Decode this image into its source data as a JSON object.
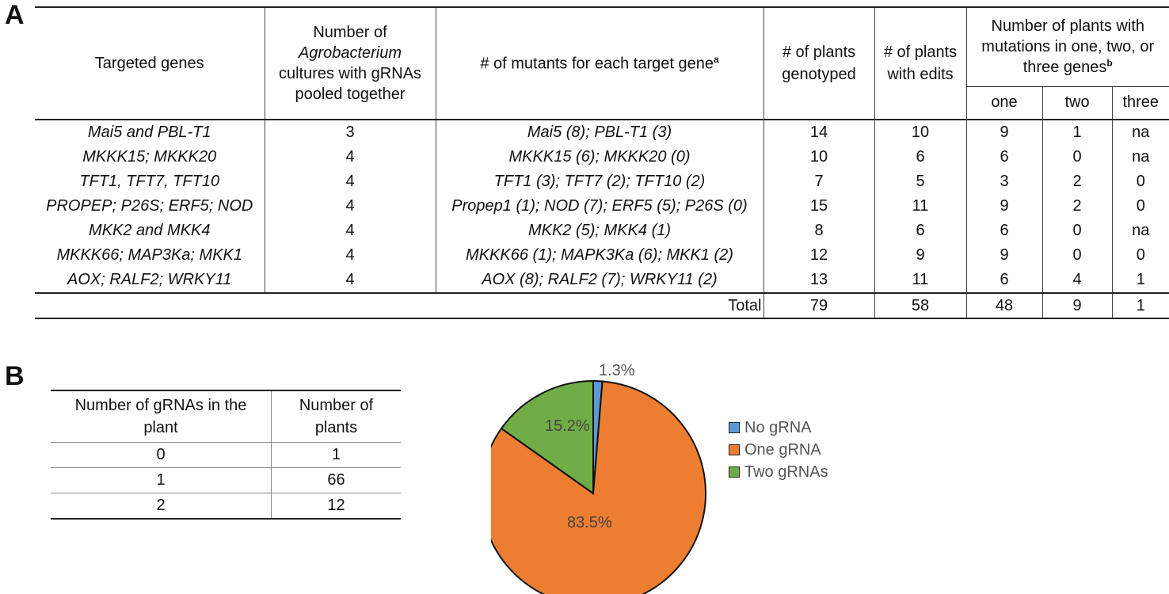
{
  "panels": {
    "a": "A",
    "b": "B"
  },
  "table_a": {
    "headers": {
      "targeted_genes": "Targeted genes",
      "cultures_line1": "Number of",
      "cultures_line2": "Agrobacterium",
      "cultures_line3": "cultures with gRNAs",
      "cultures_line4": "pooled together",
      "mutants": "# of mutants for each target gene",
      "mutants_sup": "a",
      "genotyped_line1": "# of plants",
      "genotyped_line2": "genotyped",
      "edits_line1": "# of plants",
      "edits_line2": "with edits",
      "multi_line1": "Number of plants with",
      "multi_line2": "mutations in one, two, or",
      "multi_line3": "three genes",
      "multi_sup": "b",
      "one": "one",
      "two": "two",
      "three": "three"
    },
    "rows": [
      {
        "genes": "Mai5 and PBL-T1",
        "cultures": "3",
        "mutants": "Mai5 (8); PBL-T1 (3)",
        "genotyped": "14",
        "edits": "10",
        "one": "9",
        "two": "1",
        "three": "na"
      },
      {
        "genes": "MKKK15; MKKK20",
        "cultures": "4",
        "mutants": "MKKK15 (6); MKKK20 (0)",
        "genotyped": "10",
        "edits": "6",
        "one": "6",
        "two": "0",
        "three": "na"
      },
      {
        "genes": "TFT1, TFT7, TFT10",
        "cultures": "4",
        "mutants": "TFT1 (3); TFT7 (2); TFT10 (2)",
        "genotyped": "7",
        "edits": "5",
        "one": "3",
        "two": "2",
        "three": "0"
      },
      {
        "genes": "PROPEP; P26S; ERF5; NOD",
        "cultures": "4",
        "mutants": "Propep1 (1); NOD (7); ERF5 (5); P26S (0)",
        "genotyped": "15",
        "edits": "11",
        "one": "9",
        "two": "2",
        "three": "0"
      },
      {
        "genes": "MKK2 and MKK4",
        "cultures": "4",
        "mutants": "MKK2 (5); MKK4 (1)",
        "genotyped": "8",
        "edits": "6",
        "one": "6",
        "two": "0",
        "three": "na"
      },
      {
        "genes": "MKKK66; MAP3Ka; MKK1",
        "cultures": "4",
        "mutants": "MKKK66 (1); MAPK3Ka (6); MKK1 (2)",
        "genotyped": "12",
        "edits": "9",
        "one": "9",
        "two": "0",
        "three": "0"
      },
      {
        "genes": "AOX; RALF2; WRKY11",
        "cultures": "4",
        "mutants": "AOX (8); RALF2 (7); WRKY11 (2)",
        "genotyped": "13",
        "edits": "11",
        "one": "6",
        "two": "4",
        "three": "1"
      }
    ],
    "total": {
      "label": "Total",
      "genotyped": "79",
      "edits": "58",
      "one": "48",
      "two": "9",
      "three": "1"
    }
  },
  "table_b": {
    "headers": {
      "grnas_line1": "Number of gRNAs in the",
      "grnas_line2": "plant",
      "plants_line1": "Number of",
      "plants_line2": "plants"
    },
    "rows": [
      {
        "grnas": "0",
        "plants": "1"
      },
      {
        "grnas": "1",
        "plants": "66"
      },
      {
        "grnas": "2",
        "plants": "12"
      }
    ]
  },
  "chart_data": {
    "type": "pie",
    "title": "",
    "categories": [
      "No gRNA",
      "One gRNA",
      "Two gRNAs"
    ],
    "values": [
      1.3,
      83.5,
      15.2
    ],
    "labels": [
      "1.3%",
      "83.5%",
      "15.2%"
    ],
    "colors": [
      "#5b9bd5",
      "#ed7d31",
      "#70ad47"
    ],
    "legend_position": "right"
  }
}
